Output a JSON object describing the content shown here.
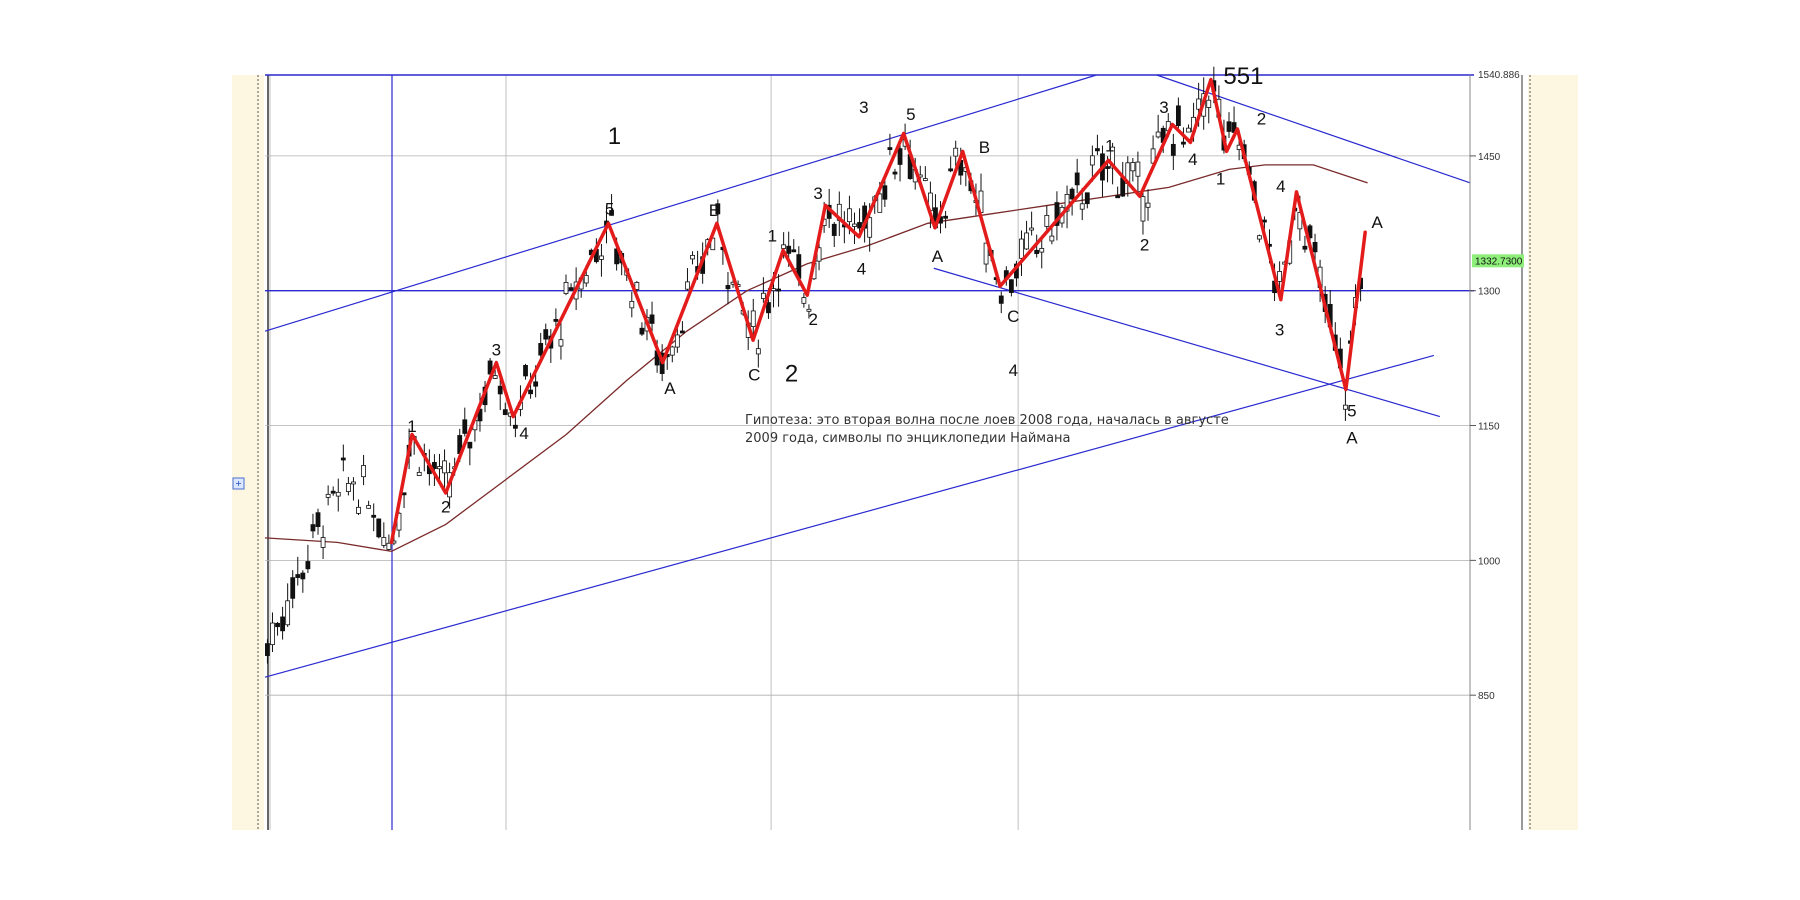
{
  "colors": {
    "frame_bg": "#fdf6e0",
    "grid": "#b0b0b0",
    "trendline": "#2a2ad0",
    "wave_line": "#e41b1b",
    "moving_average": "#7a2a2a",
    "candle": "#111111",
    "price_tag_bg": "#8ef07a"
  },
  "chart_data": {
    "type": "candlestick",
    "y_axis": {
      "ticks": [
        1450,
        1300,
        1150,
        1000,
        850
      ],
      "tick_labels": [
        "1450",
        "1300",
        "1150",
        "1000",
        "850"
      ],
      "top_label": "1540.886",
      "current_price_label": "1332.7300",
      "range": [
        700,
        1540
      ]
    },
    "horizontal_levels": [
      1300,
      1540
    ],
    "wave_path": [
      [
        0.105,
        1020
      ],
      [
        0.122,
        1140
      ],
      [
        0.15,
        1075
      ],
      [
        0.192,
        1220
      ],
      [
        0.206,
        1160
      ],
      [
        0.285,
        1375
      ],
      [
        0.33,
        1220
      ],
      [
        0.375,
        1375
      ],
      [
        0.405,
        1245
      ],
      [
        0.43,
        1345
      ],
      [
        0.45,
        1295
      ],
      [
        0.465,
        1395
      ],
      [
        0.493,
        1360
      ],
      [
        0.53,
        1475
      ],
      [
        0.556,
        1370
      ],
      [
        0.579,
        1455
      ],
      [
        0.61,
        1305
      ],
      [
        0.7,
        1445
      ],
      [
        0.726,
        1405
      ],
      [
        0.753,
        1485
      ],
      [
        0.768,
        1465
      ],
      [
        0.785,
        1535
      ],
      [
        0.798,
        1455
      ],
      [
        0.807,
        1480
      ],
      [
        0.843,
        1290
      ],
      [
        0.856,
        1410
      ],
      [
        0.897,
        1190
      ],
      [
        0.913,
        1365
      ]
    ],
    "moving_average": [
      [
        0.0,
        1025
      ],
      [
        0.06,
        1020
      ],
      [
        0.105,
        1010
      ],
      [
        0.15,
        1040
      ],
      [
        0.2,
        1090
      ],
      [
        0.25,
        1140
      ],
      [
        0.3,
        1200
      ],
      [
        0.35,
        1255
      ],
      [
        0.4,
        1300
      ],
      [
        0.45,
        1330
      ],
      [
        0.5,
        1350
      ],
      [
        0.55,
        1375
      ],
      [
        0.6,
        1385
      ],
      [
        0.65,
        1395
      ],
      [
        0.7,
        1405
      ],
      [
        0.75,
        1415
      ],
      [
        0.8,
        1435
      ],
      [
        0.83,
        1440
      ],
      [
        0.87,
        1440
      ],
      [
        0.915,
        1420
      ]
    ],
    "trendlines": [
      {
        "from": [
          0.0,
          1255
        ],
        "to": [
          0.69,
          1540
        ]
      },
      {
        "from": [
          0.0,
          870
        ],
        "to": [
          0.97,
          1228
        ]
      },
      {
        "from": [
          0.74,
          1540
        ],
        "to": [
          1.0,
          1420
        ]
      },
      {
        "from": [
          0.555,
          1325
        ],
        "to": [
          0.975,
          1160
        ]
      }
    ],
    "annotations": [
      {
        "text": "1",
        "x": 0.29,
        "y": 1463,
        "size": "big"
      },
      {
        "text": "2",
        "x": 0.437,
        "y": 1199,
        "size": "big"
      },
      {
        "text": "551",
        "x": 0.812,
        "y": 1530,
        "size": "big"
      },
      {
        "text": "1",
        "x": 0.122,
        "y": 1143,
        "size": "small"
      },
      {
        "text": "2",
        "x": 0.15,
        "y": 1053,
        "size": "small"
      },
      {
        "text": "3",
        "x": 0.192,
        "y": 1228,
        "size": "small"
      },
      {
        "text": "4",
        "x": 0.215,
        "y": 1135,
        "size": "small"
      },
      {
        "text": "5",
        "x": 0.286,
        "y": 1385,
        "size": "small"
      },
      {
        "text": "A",
        "x": 0.336,
        "y": 1185,
        "size": "small"
      },
      {
        "text": "B",
        "x": 0.373,
        "y": 1383,
        "size": "small"
      },
      {
        "text": "C",
        "x": 0.406,
        "y": 1200,
        "size": "small"
      },
      {
        "text": "1",
        "x": 0.421,
        "y": 1355,
        "size": "small"
      },
      {
        "text": "2",
        "x": 0.455,
        "y": 1262,
        "size": "small"
      },
      {
        "text": "3",
        "x": 0.459,
        "y": 1402,
        "size": "small"
      },
      {
        "text": "4",
        "x": 0.495,
        "y": 1318,
        "size": "small"
      },
      {
        "text": "3",
        "x": 0.497,
        "y": 1498,
        "size": "small"
      },
      {
        "text": "5",
        "x": 0.536,
        "y": 1490,
        "size": "small"
      },
      {
        "text": "B",
        "x": 0.597,
        "y": 1453,
        "size": "small"
      },
      {
        "text": "A",
        "x": 0.558,
        "y": 1332,
        "size": "small"
      },
      {
        "text": "C",
        "x": 0.621,
        "y": 1265,
        "size": "small"
      },
      {
        "text": "4",
        "x": 0.621,
        "y": 1205,
        "size": "small"
      },
      {
        "text": "1",
        "x": 0.701,
        "y": 1455,
        "size": "small"
      },
      {
        "text": "2",
        "x": 0.73,
        "y": 1345,
        "size": "small"
      },
      {
        "text": "3",
        "x": 0.746,
        "y": 1498,
        "size": "small"
      },
      {
        "text": "4",
        "x": 0.77,
        "y": 1440,
        "size": "small"
      },
      {
        "text": "1",
        "x": 0.793,
        "y": 1418,
        "size": "small"
      },
      {
        "text": "2",
        "x": 0.827,
        "y": 1485,
        "size": "small"
      },
      {
        "text": "4",
        "x": 0.843,
        "y": 1410,
        "size": "small"
      },
      {
        "text": "3",
        "x": 0.842,
        "y": 1250,
        "size": "small"
      },
      {
        "text": "5",
        "x": 0.902,
        "y": 1160,
        "size": "small"
      },
      {
        "text": "A",
        "x": 0.902,
        "y": 1130,
        "size": "small"
      },
      {
        "text": "A",
        "x": 0.923,
        "y": 1370,
        "size": "small"
      }
    ],
    "note_lines": [
      "Гипотеза: это вторая волна после лоев 2008  года, началась в августе",
      "2009 года, символы по энциклопедии Наймана"
    ]
  }
}
